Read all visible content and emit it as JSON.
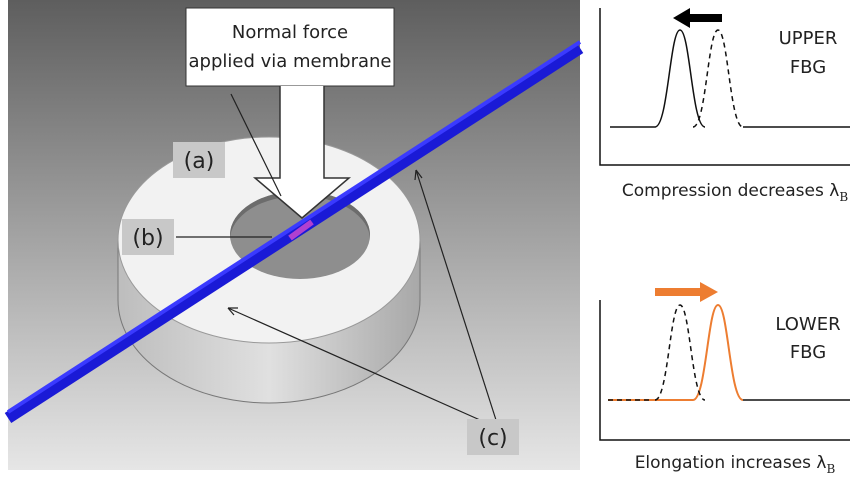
{
  "callout": {
    "lines": [
      "Normal  force",
      "applied via membrane"
    ]
  },
  "labels": [
    "(a)",
    "(b)",
    "(c)"
  ],
  "panels": [
    {
      "title_lines": [
        "UPPER",
        "FBG"
      ],
      "caption": "Compression decreases λ",
      "subscript": "B"
    },
    {
      "title_lines": [
        "LOWER",
        "FBG"
      ],
      "caption": "Elongation increases λ",
      "subscript": "B"
    }
  ]
}
